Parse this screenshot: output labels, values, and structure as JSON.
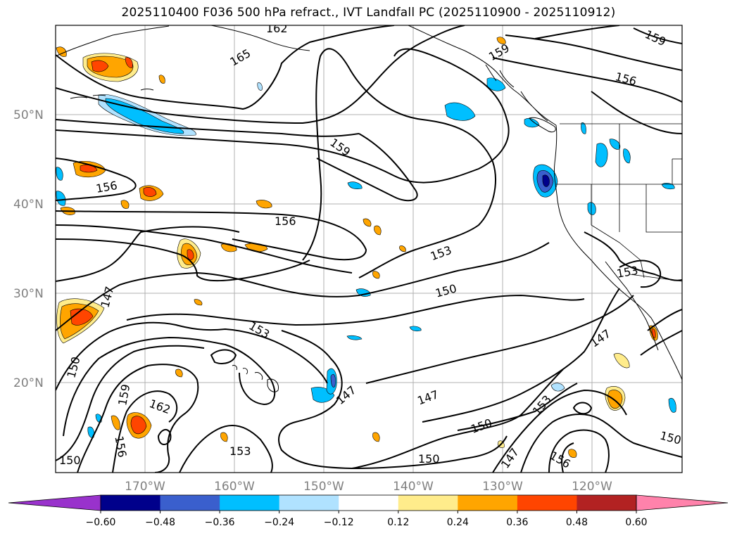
{
  "title": "2025110400 F036 500 hPa refract., IVT Landfall PC (2025110900 - 2025110912)",
  "lat_labels": [
    "50°N",
    "40°N",
    "30°N",
    "20°N"
  ],
  "lon_labels": [
    "170°W",
    "160°W",
    "150°W",
    "140°W",
    "130°W",
    "120°W"
  ],
  "contour_labels": [
    {
      "text": "162"
    },
    {
      "text": "165"
    },
    {
      "text": "159"
    },
    {
      "text": "156"
    },
    {
      "text": "159"
    },
    {
      "text": "156"
    },
    {
      "text": "159"
    },
    {
      "text": "156"
    },
    {
      "text": "153"
    },
    {
      "text": "150"
    },
    {
      "text": "153"
    },
    {
      "text": "147"
    },
    {
      "text": "153"
    },
    {
      "text": "150"
    },
    {
      "text": "147"
    },
    {
      "text": "159"
    },
    {
      "text": "162"
    },
    {
      "text": "150"
    },
    {
      "text": "156"
    },
    {
      "text": "153"
    },
    {
      "text": "147"
    },
    {
      "text": "150"
    },
    {
      "text": "147"
    },
    {
      "text": "153"
    },
    {
      "text": "150"
    },
    {
      "text": "156"
    },
    {
      "text": "147"
    },
    {
      "text": "150"
    },
    {
      "text": "150"
    }
  ],
  "colorbar": {
    "ticks": [
      "−0.60",
      "−0.48",
      "−0.36",
      "−0.24",
      "−0.12",
      "0.12",
      "0.24",
      "0.36",
      "0.48",
      "0.60"
    ],
    "colors": [
      "#9932cc",
      "#00008b",
      "#3a5fcd",
      "#00bfff",
      "#b0e2ff",
      "#ffffff",
      "#ffec8b",
      "#ffa500",
      "#ff4500",
      "#b22222",
      "#ff82ab"
    ]
  },
  "shading_colors": {
    "neg_light": "#b0e2ff",
    "neg_mid": "#00bfff",
    "neg_strong": "#3a5fcd",
    "neg_max": "#00008b",
    "pos_light": "#ffec8b",
    "pos_mid": "#ffa500",
    "pos_strong": "#ff4500"
  }
}
